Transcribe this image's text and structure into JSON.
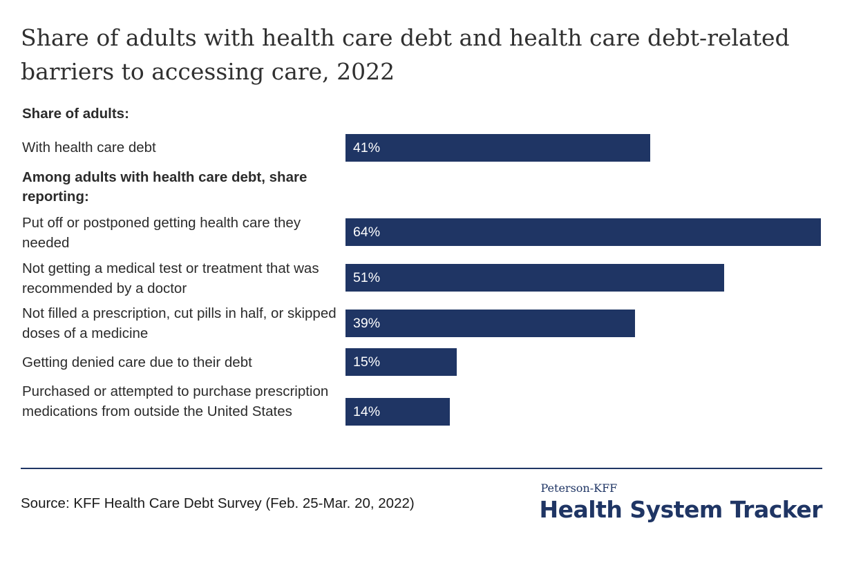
{
  "chart_data": {
    "type": "bar",
    "title": "Share of adults with health care debt and health care debt-related barriers to accessing care, 2022",
    "groups": [
      {
        "heading": "Share of adults:",
        "items": [
          {
            "label": "With health care debt",
            "value": 41,
            "display": "41%"
          }
        ]
      },
      {
        "heading": "Among adults with health care debt, share reporting:",
        "items": [
          {
            "label": "Put off or postponed getting health care they needed",
            "value": 64,
            "display": "64%"
          },
          {
            "label": "Not getting a medical test or treatment that was recommended by a doctor",
            "value": 51,
            "display": "51%"
          },
          {
            "label": "Not filled a prescription, cut pills in half, or skipped doses of a medicine",
            "value": 39,
            "display": "39%"
          },
          {
            "label": "Getting denied care due to their debt",
            "value": 15,
            "display": "15%"
          },
          {
            "label": "Purchased or attempted to purchase prescription medications from outside the United States",
            "value": 14,
            "display": "14%"
          }
        ]
      }
    ],
    "bar_color": "#1f3564",
    "value_label_color": "#ffffff",
    "max_value": 64
  },
  "footer": {
    "source": "Source: KFF Health Care Debt Survey (Feb. 25-Mar. 20, 2022)",
    "logo_small": "Peterson-KFF",
    "logo_big": "Health System Tracker"
  }
}
